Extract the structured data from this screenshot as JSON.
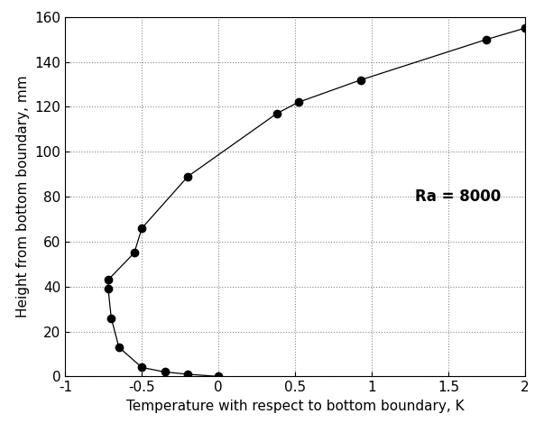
{
  "chart_data": {
    "type": "line",
    "x_label": "Temperature with respect to bottom boundary, K",
    "y_label": "Height from bottom boundary, mm",
    "annotation": "Ra = 8000",
    "x": [
      0,
      -0.2,
      -0.35,
      -0.5,
      -0.65,
      -0.7,
      -0.72,
      -0.72,
      -0.55,
      -0.5,
      -0.2,
      0.38,
      0.52,
      0.93,
      1.75,
      2.0
    ],
    "values": [
      0,
      1,
      2,
      4,
      13,
      26,
      39,
      43,
      55,
      66,
      89,
      117,
      122,
      132,
      150,
      155
    ],
    "color": "#000000",
    "marker": "o",
    "line_style": "solid",
    "xlim": [
      -1,
      2
    ],
    "ylim": [
      0,
      160
    ],
    "xticks": [
      -1,
      -0.5,
      0,
      0.5,
      1,
      1.5,
      2
    ],
    "yticks": [
      0,
      20,
      40,
      60,
      80,
      100,
      120,
      140,
      160
    ],
    "grid": true
  }
}
